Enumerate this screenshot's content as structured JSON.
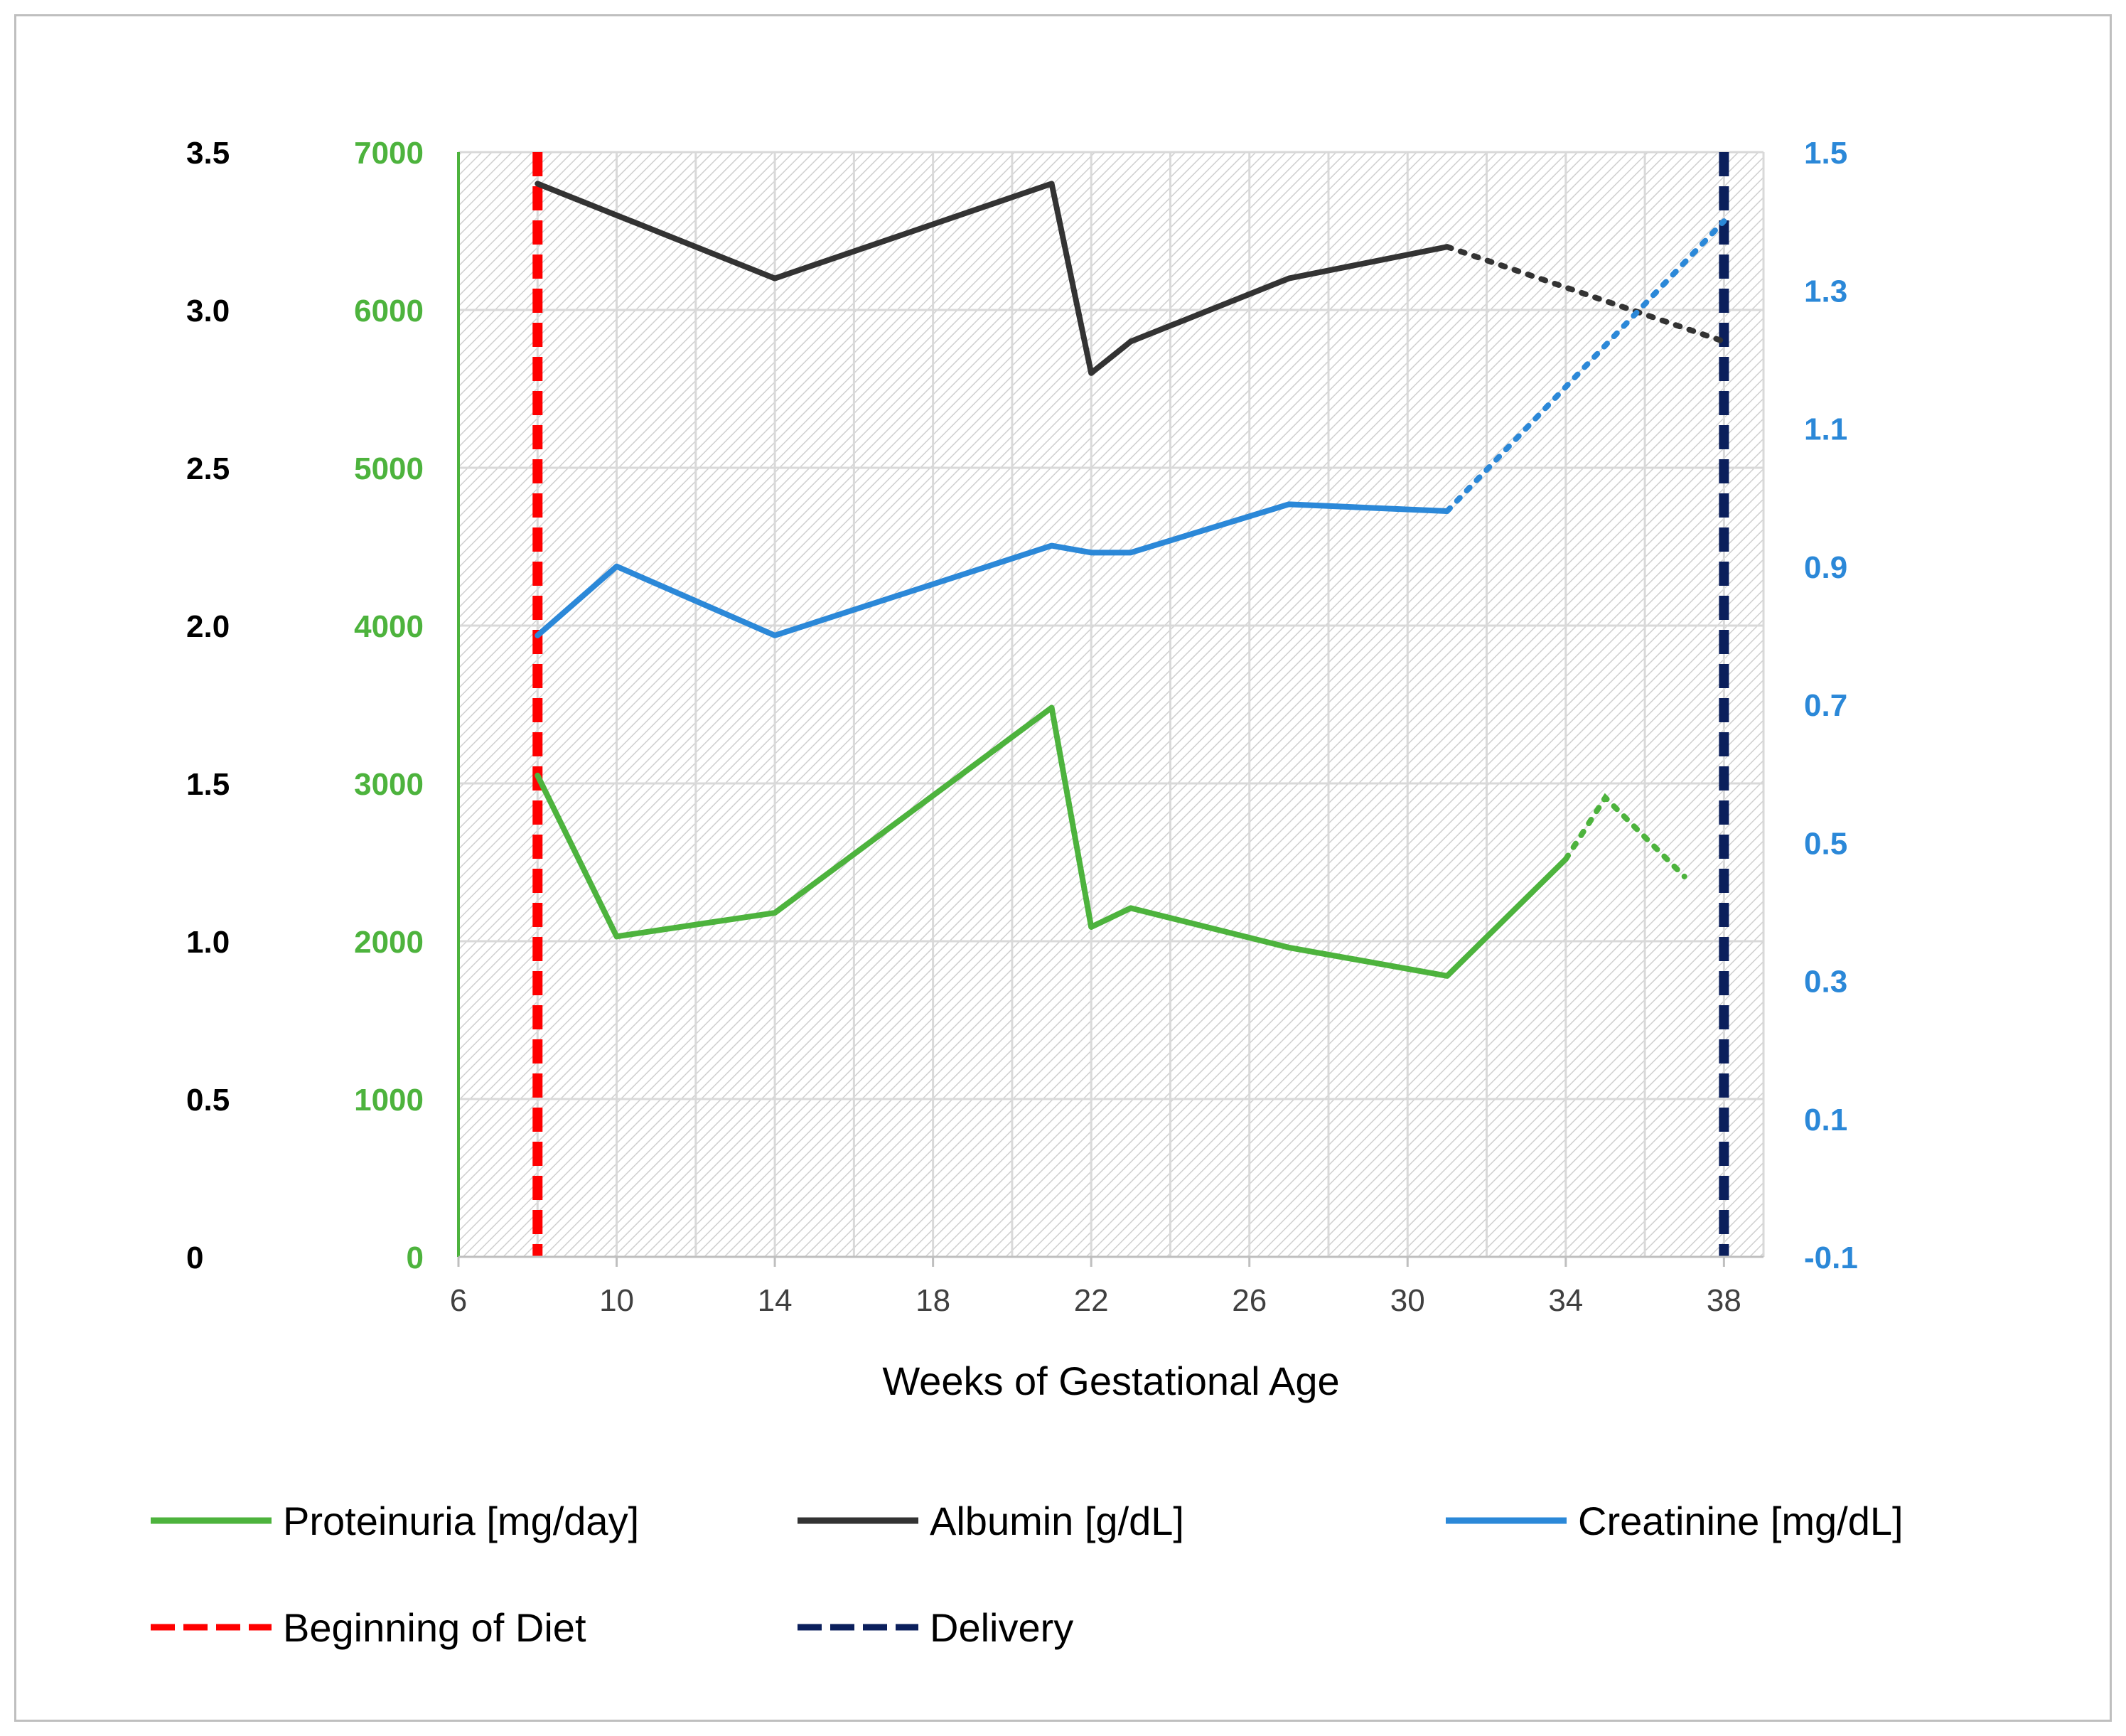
{
  "chart_data": {
    "type": "line",
    "title": "",
    "xlabel": "Weeks of Gestational Age",
    "xlim": [
      6,
      39
    ],
    "x_ticks": [
      "6",
      "10",
      "14",
      "18",
      "22",
      "26",
      "30",
      "34",
      "38"
    ],
    "grid": true,
    "axes": {
      "albumin_axis": {
        "ticks": [
          "0",
          "0.5",
          "1.0",
          "1.5",
          "2.0",
          "2.5",
          "3.0",
          "3.5"
        ],
        "ylim": [
          0,
          3.5
        ],
        "color": "#000000",
        "side": "left-outer"
      },
      "proteinuria_axis": {
        "ticks": [
          "0",
          "1000",
          "2000",
          "3000",
          "4000",
          "5000",
          "6000",
          "7000"
        ],
        "ylim": [
          0,
          7000
        ],
        "color": "#4db33d",
        "side": "left-inner"
      },
      "creatinine_axis": {
        "ticks": [
          "-0.1",
          "0.1",
          "0.3",
          "0.5",
          "0.7",
          "0.9",
          "1.1",
          "1.3",
          "1.5"
        ],
        "ylim": [
          -0.1,
          1.5
        ],
        "color": "#2b88d8",
        "side": "right"
      }
    },
    "series": [
      {
        "name": "Proteinuria [mg/day]",
        "axis": "proteinuria_axis",
        "color": "#4db33d",
        "x": [
          8,
          10,
          14,
          21,
          22,
          23,
          27,
          31,
          34
        ],
        "values": [
          3050,
          2030,
          2180,
          3480,
          2090,
          2210,
          1960,
          1780,
          2520
        ],
        "projected": {
          "x": [
            34,
            35,
            37
          ],
          "values": [
            2520,
            2910,
            2410
          ]
        }
      },
      {
        "name": "Albumin [g/dL]",
        "axis": "albumin_axis",
        "color": "#333333",
        "x": [
          8,
          14,
          21,
          22,
          23,
          27,
          31
        ],
        "values": [
          3.4,
          3.1,
          3.4,
          2.8,
          2.9,
          3.1,
          3.2
        ],
        "projected": {
          "x": [
            31,
            38
          ],
          "values": [
            3.2,
            2.9
          ]
        }
      },
      {
        "name": "Creatinine [mg/dL]",
        "axis": "creatinine_axis",
        "color": "#2b88d8",
        "x": [
          8,
          10,
          14,
          21,
          22,
          23,
          27,
          31
        ],
        "values": [
          0.8,
          0.9,
          0.8,
          0.93,
          0.92,
          0.92,
          0.99,
          0.98
        ],
        "projected": {
          "x": [
            31,
            38
          ],
          "values": [
            0.98,
            1.4
          ]
        }
      }
    ],
    "vertical_markers": [
      {
        "name": "Beginning of Diet",
        "x": 8,
        "color": "#ff0000"
      },
      {
        "name": "Delivery",
        "x": 38,
        "color": "#0b1f5c"
      }
    ],
    "legend": {
      "placement": "bottom",
      "items": [
        {
          "label": "Proteinuria [mg/day]",
          "color": "#4db33d",
          "style": "solid"
        },
        {
          "label": "Albumin [g/dL]",
          "color": "#333333",
          "style": "solid"
        },
        {
          "label": "Creatinine [mg/dL]",
          "color": "#2b88d8",
          "style": "solid"
        },
        {
          "label": "Beginning of Diet",
          "color": "#ff0000",
          "style": "dashed"
        },
        {
          "label": "Delivery",
          "color": "#0b1f5c",
          "style": "dashed"
        }
      ]
    }
  }
}
